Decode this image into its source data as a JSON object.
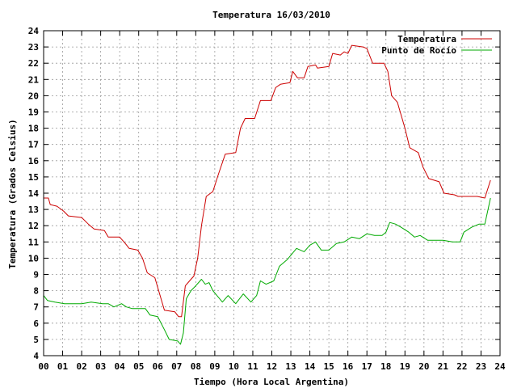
{
  "chart_data": {
    "type": "line",
    "title": "Temperatura 16/03/2010",
    "xlabel": "Tiempo (Hora Local Argentina)",
    "ylabel": "Temperatura (Grados Celsius)",
    "xlim": [
      0,
      24
    ],
    "ylim": [
      4,
      24
    ],
    "x_ticks": [
      "00",
      "01",
      "02",
      "03",
      "04",
      "05",
      "06",
      "07",
      "08",
      "09",
      "10",
      "11",
      "12",
      "13",
      "14",
      "15",
      "16",
      "17",
      "18",
      "19",
      "20",
      "21",
      "22",
      "23",
      "24"
    ],
    "y_ticks": [
      "4",
      "5",
      "6",
      "7",
      "8",
      "9",
      "10",
      "11",
      "12",
      "13",
      "14",
      "15",
      "16",
      "17",
      "18",
      "19",
      "20",
      "21",
      "22",
      "23",
      "24"
    ],
    "grid": true,
    "legend_position": "top-right",
    "series": [
      {
        "name": "Temperatura",
        "color": "#cc0000",
        "points": [
          [
            0.0,
            13.7
          ],
          [
            0.25,
            13.7
          ],
          [
            0.35,
            13.3
          ],
          [
            0.7,
            13.2
          ],
          [
            1.05,
            12.9
          ],
          [
            1.3,
            12.6
          ],
          [
            2.0,
            12.5
          ],
          [
            2.35,
            12.1
          ],
          [
            2.65,
            11.8
          ],
          [
            3.2,
            11.7
          ],
          [
            3.4,
            11.3
          ],
          [
            4.0,
            11.3
          ],
          [
            4.3,
            10.9
          ],
          [
            4.5,
            10.6
          ],
          [
            4.95,
            10.5
          ],
          [
            5.2,
            10.0
          ],
          [
            5.45,
            9.1
          ],
          [
            5.85,
            8.8
          ],
          [
            6.1,
            7.8
          ],
          [
            6.35,
            6.8
          ],
          [
            6.9,
            6.7
          ],
          [
            7.1,
            6.4
          ],
          [
            7.25,
            6.4
          ],
          [
            7.45,
            8.3
          ],
          [
            7.75,
            8.7
          ],
          [
            7.9,
            8.9
          ],
          [
            8.1,
            10.0
          ],
          [
            8.3,
            12.0
          ],
          [
            8.55,
            13.8
          ],
          [
            8.9,
            14.1
          ],
          [
            9.2,
            15.2
          ],
          [
            9.55,
            16.4
          ],
          [
            10.1,
            16.5
          ],
          [
            10.35,
            18.0
          ],
          [
            10.6,
            18.6
          ],
          [
            11.1,
            18.6
          ],
          [
            11.4,
            19.7
          ],
          [
            11.95,
            19.7
          ],
          [
            12.2,
            20.5
          ],
          [
            12.45,
            20.7
          ],
          [
            12.95,
            20.8
          ],
          [
            13.1,
            21.5
          ],
          [
            13.35,
            21.1
          ],
          [
            13.7,
            21.1
          ],
          [
            13.9,
            21.8
          ],
          [
            14.3,
            21.9
          ],
          [
            14.4,
            21.7
          ],
          [
            15.0,
            21.8
          ],
          [
            15.2,
            22.6
          ],
          [
            15.6,
            22.5
          ],
          [
            15.8,
            22.7
          ],
          [
            16.0,
            22.6
          ],
          [
            16.2,
            23.1
          ],
          [
            16.8,
            23.0
          ],
          [
            17.0,
            22.9
          ],
          [
            17.3,
            22.0
          ],
          [
            17.9,
            22.0
          ],
          [
            18.1,
            21.5
          ],
          [
            18.3,
            20.0
          ],
          [
            18.6,
            19.6
          ],
          [
            18.8,
            18.8
          ],
          [
            19.0,
            18.0
          ],
          [
            19.25,
            16.8
          ],
          [
            19.7,
            16.5
          ],
          [
            19.95,
            15.6
          ],
          [
            20.25,
            14.9
          ],
          [
            20.8,
            14.7
          ],
          [
            21.05,
            14.0
          ],
          [
            21.6,
            13.9
          ],
          [
            21.8,
            13.8
          ],
          [
            22.8,
            13.8
          ],
          [
            23.2,
            13.7
          ],
          [
            23.5,
            14.8
          ]
        ]
      },
      {
        "name": "Punto de Rocío",
        "color": "#00aa00",
        "points": [
          [
            0.0,
            7.7
          ],
          [
            0.2,
            7.4
          ],
          [
            0.6,
            7.3
          ],
          [
            1.1,
            7.2
          ],
          [
            2.0,
            7.2
          ],
          [
            2.5,
            7.3
          ],
          [
            3.1,
            7.2
          ],
          [
            3.4,
            7.2
          ],
          [
            3.7,
            7.0
          ],
          [
            4.1,
            7.2
          ],
          [
            4.35,
            7.0
          ],
          [
            4.65,
            6.9
          ],
          [
            5.35,
            6.9
          ],
          [
            5.6,
            6.5
          ],
          [
            6.0,
            6.4
          ],
          [
            6.35,
            5.6
          ],
          [
            6.6,
            5.0
          ],
          [
            7.05,
            4.9
          ],
          [
            7.2,
            4.7
          ],
          [
            7.35,
            5.4
          ],
          [
            7.5,
            7.5
          ],
          [
            7.75,
            8.0
          ],
          [
            8.0,
            8.3
          ],
          [
            8.3,
            8.7
          ],
          [
            8.5,
            8.4
          ],
          [
            8.7,
            8.5
          ],
          [
            8.9,
            8.0
          ],
          [
            9.4,
            7.3
          ],
          [
            9.7,
            7.7
          ],
          [
            10.1,
            7.2
          ],
          [
            10.5,
            7.8
          ],
          [
            10.9,
            7.3
          ],
          [
            11.2,
            7.7
          ],
          [
            11.4,
            8.6
          ],
          [
            11.7,
            8.4
          ],
          [
            12.1,
            8.6
          ],
          [
            12.4,
            9.5
          ],
          [
            12.8,
            9.9
          ],
          [
            13.3,
            10.6
          ],
          [
            13.7,
            10.4
          ],
          [
            14.0,
            10.8
          ],
          [
            14.3,
            11.0
          ],
          [
            14.6,
            10.5
          ],
          [
            15.0,
            10.5
          ],
          [
            15.4,
            10.9
          ],
          [
            15.8,
            11.0
          ],
          [
            16.2,
            11.3
          ],
          [
            16.6,
            11.2
          ],
          [
            17.0,
            11.5
          ],
          [
            17.4,
            11.4
          ],
          [
            17.8,
            11.4
          ],
          [
            18.0,
            11.6
          ],
          [
            18.2,
            12.2
          ],
          [
            18.5,
            12.1
          ],
          [
            18.8,
            11.9
          ],
          [
            19.2,
            11.6
          ],
          [
            19.5,
            11.3
          ],
          [
            19.8,
            11.4
          ],
          [
            20.2,
            11.1
          ],
          [
            20.6,
            11.1
          ],
          [
            21.0,
            11.1
          ],
          [
            21.5,
            11.0
          ],
          [
            21.9,
            11.0
          ],
          [
            22.1,
            11.6
          ],
          [
            22.5,
            11.9
          ],
          [
            22.9,
            12.1
          ],
          [
            23.2,
            12.1
          ],
          [
            23.35,
            12.9
          ],
          [
            23.5,
            13.7
          ]
        ]
      }
    ]
  }
}
